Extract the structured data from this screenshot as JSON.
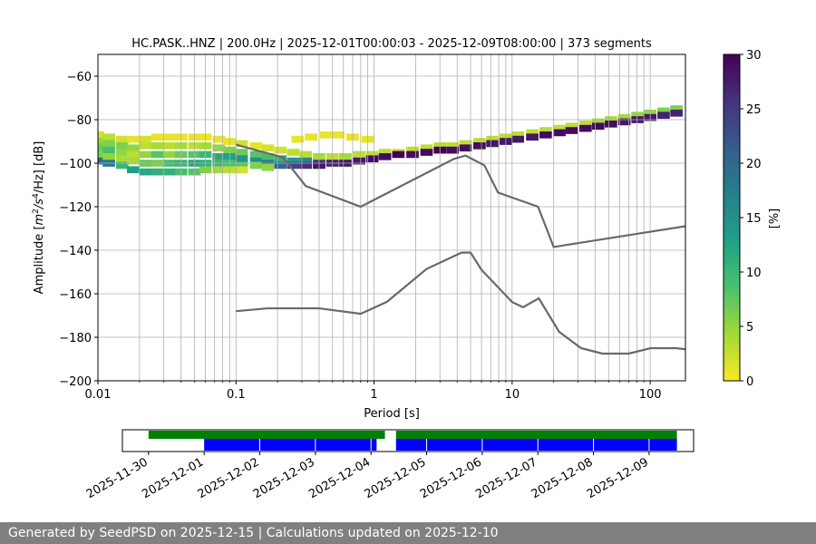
{
  "footer": {
    "text": "Generated by SeedPSD on 2025-12-15 | Calculations updated on 2025-12-10"
  },
  "chart_data": [
    {
      "type": "heatmap",
      "title": "HC.PASK..HNZ | 200.0Hz | 2025-12-01T00:00:03 - 2025-12-09T08:00:00 | 373 segments",
      "xlabel": "Period [s]",
      "ylabel_parts": {
        "prefix": "Amplitude [",
        "m": "m",
        "exp2": "2",
        "s": "/s",
        "exp4": "4",
        "hz": "/Hz] [dB]"
      },
      "x_scale": "log",
      "xlim": [
        0.01,
        180
      ],
      "ylim": [
        -200,
        -50
      ],
      "x_ticks": [
        {
          "value": 0.01,
          "label": "0.01"
        },
        {
          "value": 0.1,
          "label": "0.1"
        },
        {
          "value": 1,
          "label": "1"
        },
        {
          "value": 10,
          "label": "10"
        },
        {
          "value": 100,
          "label": "100"
        }
      ],
      "y_ticks": [
        {
          "value": -60,
          "label": "−60"
        },
        {
          "value": -80,
          "label": "−80"
        },
        {
          "value": -100,
          "label": "−100"
        },
        {
          "value": -120,
          "label": "−120"
        },
        {
          "value": -140,
          "label": "−140"
        },
        {
          "value": -160,
          "label": "−160"
        },
        {
          "value": -180,
          "label": "−180"
        },
        {
          "value": -200,
          "label": "−200"
        }
      ],
      "colorbar": {
        "label": "[%]",
        "range": [
          0,
          30
        ],
        "ticks": [
          {
            "value": 0,
            "label": "0"
          },
          {
            "value": 5,
            "label": "5"
          },
          {
            "value": 10,
            "label": "10"
          },
          {
            "value": 15,
            "label": "15"
          },
          {
            "value": 20,
            "label": "20"
          },
          {
            "value": 25,
            "label": "25"
          },
          {
            "value": 30,
            "label": "30"
          }
        ],
        "colors": [
          "#fde725",
          "#a0da39",
          "#4ac16d",
          "#1fa187",
          "#277f8e",
          "#365c8d",
          "#46327e",
          "#440154"
        ]
      },
      "noise_models": [
        {
          "name": "NHNM",
          "color": "#696969",
          "points": [
            [
              0.1,
              -91.5
            ],
            [
              0.22,
              -97.4
            ],
            [
              0.32,
              -110.5
            ],
            [
              0.8,
              -120
            ],
            [
              3.8,
              -98
            ],
            [
              4.6,
              -96.5
            ],
            [
              6.3,
              -101
            ],
            [
              7.9,
              -113.5
            ],
            [
              15.4,
              -120
            ],
            [
              20,
              -138.5
            ],
            [
              354.8,
              -126
            ]
          ]
        },
        {
          "name": "NLNM",
          "color": "#696969",
          "points": [
            [
              0.1,
              -168
            ],
            [
              0.17,
              -166.7
            ],
            [
              0.4,
              -166.7
            ],
            [
              0.8,
              -169.2
            ],
            [
              1.24,
              -163.7
            ],
            [
              2.4,
              -148.6
            ],
            [
              4.3,
              -141.1
            ],
            [
              5,
              -141.1
            ],
            [
              6,
              -149
            ],
            [
              10,
              -163.8
            ],
            [
              12,
              -166.2
            ],
            [
              15.6,
              -162.1
            ],
            [
              21.9,
              -177.5
            ],
            [
              31.6,
              -185
            ],
            [
              45,
              -187.5
            ],
            [
              70,
              -187.5
            ],
            [
              101,
              -185
            ],
            [
              154,
              -185
            ],
            [
              328,
              -187.5
            ]
          ]
        }
      ],
      "psd_cells": [
        {
          "period": 0.01,
          "db": -87,
          "pct": 2
        },
        {
          "period": 0.01,
          "db": -90,
          "pct": 5
        },
        {
          "period": 0.01,
          "db": -93,
          "pct": 7
        },
        {
          "period": 0.01,
          "db": -96,
          "pct": 6
        },
        {
          "period": 0.01,
          "db": -99,
          "pct": 20
        },
        {
          "period": 0.012,
          "db": -88,
          "pct": 3
        },
        {
          "period": 0.012,
          "db": -91,
          "pct": 6
        },
        {
          "period": 0.012,
          "db": -94,
          "pct": 9
        },
        {
          "period": 0.012,
          "db": -97,
          "pct": 5
        },
        {
          "period": 0.012,
          "db": -100,
          "pct": 18
        },
        {
          "period": 0.015,
          "db": -89,
          "pct": 2
        },
        {
          "period": 0.015,
          "db": -92,
          "pct": 6
        },
        {
          "period": 0.015,
          "db": -95,
          "pct": 5
        },
        {
          "period": 0.015,
          "db": -98,
          "pct": 4
        },
        {
          "period": 0.015,
          "db": -101,
          "pct": 10
        },
        {
          "period": 0.018,
          "db": -89,
          "pct": 1
        },
        {
          "period": 0.018,
          "db": -93,
          "pct": 5
        },
        {
          "period": 0.018,
          "db": -96,
          "pct": 3
        },
        {
          "period": 0.018,
          "db": -99,
          "pct": 4
        },
        {
          "period": 0.018,
          "db": -103,
          "pct": 13
        },
        {
          "period": 0.022,
          "db": -89,
          "pct": 2
        },
        {
          "period": 0.022,
          "db": -92,
          "pct": 3
        },
        {
          "period": 0.022,
          "db": -96,
          "pct": 5
        },
        {
          "period": 0.022,
          "db": -100,
          "pct": 7
        },
        {
          "period": 0.022,
          "db": -104,
          "pct": 12
        },
        {
          "period": 0.027,
          "db": -88,
          "pct": 1
        },
        {
          "period": 0.027,
          "db": -92,
          "pct": 4
        },
        {
          "period": 0.027,
          "db": -96,
          "pct": 8
        },
        {
          "period": 0.027,
          "db": -100,
          "pct": 6
        },
        {
          "period": 0.027,
          "db": -104,
          "pct": 11
        },
        {
          "period": 0.033,
          "db": -88,
          "pct": 1
        },
        {
          "period": 0.033,
          "db": -92,
          "pct": 3
        },
        {
          "period": 0.033,
          "db": -96,
          "pct": 5
        },
        {
          "period": 0.033,
          "db": -100,
          "pct": 9
        },
        {
          "period": 0.033,
          "db": -104,
          "pct": 11
        },
        {
          "period": 0.04,
          "db": -88,
          "pct": 1
        },
        {
          "period": 0.04,
          "db": -92,
          "pct": 4
        },
        {
          "period": 0.04,
          "db": -96,
          "pct": 7
        },
        {
          "period": 0.04,
          "db": -100,
          "pct": 10
        },
        {
          "period": 0.04,
          "db": -104,
          "pct": 9
        },
        {
          "period": 0.05,
          "db": -88,
          "pct": 1
        },
        {
          "period": 0.05,
          "db": -92,
          "pct": 3
        },
        {
          "period": 0.05,
          "db": -96,
          "pct": 8
        },
        {
          "period": 0.05,
          "db": -100,
          "pct": 12
        },
        {
          "period": 0.05,
          "db": -104,
          "pct": 8
        },
        {
          "period": 0.06,
          "db": -88,
          "pct": 1
        },
        {
          "period": 0.06,
          "db": -92,
          "pct": 4
        },
        {
          "period": 0.06,
          "db": -96,
          "pct": 10
        },
        {
          "period": 0.06,
          "db": -100,
          "pct": 11
        },
        {
          "period": 0.06,
          "db": -103,
          "pct": 6
        },
        {
          "period": 0.075,
          "db": -89,
          "pct": 1
        },
        {
          "period": 0.075,
          "db": -93,
          "pct": 5
        },
        {
          "period": 0.075,
          "db": -97,
          "pct": 12
        },
        {
          "period": 0.075,
          "db": -100,
          "pct": 10
        },
        {
          "period": 0.075,
          "db": -103,
          "pct": 4
        },
        {
          "period": 0.09,
          "db": -90,
          "pct": 1
        },
        {
          "period": 0.09,
          "db": -94,
          "pct": 6
        },
        {
          "period": 0.09,
          "db": -97,
          "pct": 13
        },
        {
          "period": 0.09,
          "db": -100,
          "pct": 9
        },
        {
          "period": 0.09,
          "db": -103,
          "pct": 3
        },
        {
          "period": 0.11,
          "db": -91,
          "pct": 2
        },
        {
          "period": 0.11,
          "db": -95,
          "pct": 7
        },
        {
          "period": 0.11,
          "db": -98,
          "pct": 14
        },
        {
          "period": 0.11,
          "db": -101,
          "pct": 8
        },
        {
          "period": 0.11,
          "db": -103,
          "pct": 2
        },
        {
          "period": 0.14,
          "db": -92,
          "pct": 1
        },
        {
          "period": 0.14,
          "db": -96,
          "pct": 8
        },
        {
          "period": 0.14,
          "db": -99,
          "pct": 15
        },
        {
          "period": 0.14,
          "db": -101,
          "pct": 6
        },
        {
          "period": 0.17,
          "db": -93,
          "pct": 2
        },
        {
          "period": 0.17,
          "db": -97,
          "pct": 9
        },
        {
          "period": 0.17,
          "db": -100,
          "pct": 17
        },
        {
          "period": 0.17,
          "db": -102,
          "pct": 5
        },
        {
          "period": 0.21,
          "db": -94,
          "pct": 2
        },
        {
          "period": 0.21,
          "db": -98,
          "pct": 11
        },
        {
          "period": 0.21,
          "db": -101,
          "pct": 20
        },
        {
          "period": 0.26,
          "db": -95,
          "pct": 3
        },
        {
          "period": 0.26,
          "db": -99,
          "pct": 14
        },
        {
          "period": 0.26,
          "db": -101,
          "pct": 24
        },
        {
          "period": 0.32,
          "db": -96,
          "pct": 3
        },
        {
          "period": 0.32,
          "db": -99,
          "pct": 16
        },
        {
          "period": 0.32,
          "db": -101,
          "pct": 26
        },
        {
          "period": 0.4,
          "db": -97,
          "pct": 4
        },
        {
          "period": 0.4,
          "db": -100,
          "pct": 25
        },
        {
          "period": 0.4,
          "db": -101,
          "pct": 28
        },
        {
          "period": 0.5,
          "db": -97,
          "pct": 3
        },
        {
          "period": 0.5,
          "db": -100,
          "pct": 27
        },
        {
          "period": 0.62,
          "db": -97,
          "pct": 4
        },
        {
          "period": 0.62,
          "db": -100,
          "pct": 28
        },
        {
          "period": 0.78,
          "db": -96,
          "pct": 3
        },
        {
          "period": 0.78,
          "db": -99,
          "pct": 28
        },
        {
          "period": 0.97,
          "db": -96,
          "pct": 3
        },
        {
          "period": 0.97,
          "db": -98,
          "pct": 29
        },
        {
          "period": 1.2,
          "db": -95,
          "pct": 3
        },
        {
          "period": 1.2,
          "db": -97,
          "pct": 29
        },
        {
          "period": 1.5,
          "db": -95,
          "pct": 2
        },
        {
          "period": 1.5,
          "db": -96,
          "pct": 30
        },
        {
          "period": 1.9,
          "db": -94,
          "pct": 3
        },
        {
          "period": 1.9,
          "db": -96,
          "pct": 29
        },
        {
          "period": 2.4,
          "db": -93,
          "pct": 3
        },
        {
          "period": 2.4,
          "db": -95,
          "pct": 29
        },
        {
          "period": 3,
          "db": -92,
          "pct": 3
        },
        {
          "period": 3,
          "db": -94,
          "pct": 30
        },
        {
          "period": 3.7,
          "db": -92,
          "pct": 3
        },
        {
          "period": 3.7,
          "db": -94,
          "pct": 29
        },
        {
          "period": 4.6,
          "db": -91,
          "pct": 3
        },
        {
          "period": 4.6,
          "db": -93,
          "pct": 29
        },
        {
          "period": 5.8,
          "db": -90,
          "pct": 3
        },
        {
          "period": 5.8,
          "db": -92,
          "pct": 29
        },
        {
          "period": 7.2,
          "db": -89,
          "pct": 3
        },
        {
          "period": 7.2,
          "db": -91,
          "pct": 28
        },
        {
          "period": 9,
          "db": -88,
          "pct": 3
        },
        {
          "period": 9,
          "db": -90,
          "pct": 28
        },
        {
          "period": 11,
          "db": -87,
          "pct": 3
        },
        {
          "period": 11,
          "db": -89,
          "pct": 28
        },
        {
          "period": 14,
          "db": -86,
          "pct": 3
        },
        {
          "period": 14,
          "db": -88,
          "pct": 28
        },
        {
          "period": 17.5,
          "db": -85,
          "pct": 3
        },
        {
          "period": 17.5,
          "db": -87,
          "pct": 29
        },
        {
          "period": 22,
          "db": -84,
          "pct": 3
        },
        {
          "period": 22,
          "db": -86,
          "pct": 29
        },
        {
          "period": 27,
          "db": -83,
          "pct": 3
        },
        {
          "period": 27,
          "db": -85,
          "pct": 29
        },
        {
          "period": 34,
          "db": -82,
          "pct": 3
        },
        {
          "period": 34,
          "db": -84,
          "pct": 29
        },
        {
          "period": 42,
          "db": -81,
          "pct": 4
        },
        {
          "period": 42,
          "db": -83,
          "pct": 29
        },
        {
          "period": 52,
          "db": -80,
          "pct": 4
        },
        {
          "period": 52,
          "db": -82,
          "pct": 29
        },
        {
          "period": 65,
          "db": -79,
          "pct": 4
        },
        {
          "period": 65,
          "db": -81,
          "pct": 28
        },
        {
          "period": 81,
          "db": -78,
          "pct": 5
        },
        {
          "period": 81,
          "db": -80,
          "pct": 28
        },
        {
          "period": 100,
          "db": -77,
          "pct": 5
        },
        {
          "period": 100,
          "db": -79,
          "pct": 28
        },
        {
          "period": 125,
          "db": -76,
          "pct": 6
        },
        {
          "period": 125,
          "db": -78,
          "pct": 27
        },
        {
          "period": 155,
          "db": -75,
          "pct": 6
        },
        {
          "period": 155,
          "db": -77,
          "pct": 27
        },
        {
          "period": 0.45,
          "db": -87,
          "pct": 1
        },
        {
          "period": 0.55,
          "db": -87,
          "pct": 1
        },
        {
          "period": 0.7,
          "db": -88,
          "pct": 1
        },
        {
          "period": 0.9,
          "db": -89,
          "pct": 1
        },
        {
          "period": 0.35,
          "db": -88,
          "pct": 1
        },
        {
          "period": 0.28,
          "db": -89,
          "pct": 1
        }
      ]
    },
    {
      "type": "timeline",
      "x_labels": [
        "2025-11-30",
        "2025-12-01",
        "2025-12-02",
        "2025-12-03",
        "2025-12-04",
        "2025-12-05",
        "2025-12-06",
        "2025-12-07",
        "2025-12-08",
        "2025-12-09"
      ],
      "xlim_days": [
        -0.47,
        9.8
      ],
      "series": [
        {
          "color": "#008000",
          "row": "upper",
          "intervals": [
            [
              0,
              4.25
            ],
            [
              4.45,
              9.5
            ]
          ]
        },
        {
          "color": "#0000ff",
          "row": "lower",
          "intervals": [
            [
              1.0,
              4.1
            ],
            [
              4.45,
              9.5
            ]
          ]
        }
      ],
      "day_marks": [
        2,
        3,
        4,
        5,
        6,
        7,
        8,
        9
      ]
    }
  ]
}
